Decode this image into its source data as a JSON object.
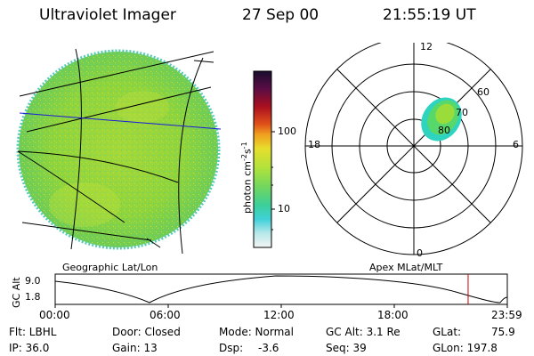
{
  "header": {
    "instrument": "Ultraviolet Imager",
    "date": "27 Sep 00",
    "time": "21:55:19 UT"
  },
  "colorbar": {
    "unit_label": "photon cm",
    "unit_sup1": "-2",
    "unit_s": "s",
    "unit_sup2": "-1",
    "ticks": [
      {
        "label": "100",
        "value": 100
      },
      {
        "label": "10",
        "value": 10
      }
    ],
    "colors": [
      "#1a0d2e",
      "#3b0a45",
      "#6e0f3a",
      "#a80f1f",
      "#d63a16",
      "#f0801f",
      "#f0b024",
      "#e6de2c",
      "#b8e63a",
      "#7ed95a",
      "#3ccf8a",
      "#3fd0d6",
      "#9fe6e6",
      "#dcebed",
      "#f2f2f2"
    ]
  },
  "left_panel": {
    "label": "Geographic Lat/Lon"
  },
  "polar_plot": {
    "label": "Apex MLat/MLT",
    "mlt_labels": {
      "top": "12",
      "bottom": "0",
      "left": "18",
      "right": "6"
    },
    "lat_labels": [
      "60",
      "70",
      "80"
    ]
  },
  "altitude_plot": {
    "ylabel": "GC Alt",
    "yticks": [
      "9.0",
      "1.8"
    ],
    "xticks": [
      "00:00",
      "06:00",
      "12:00",
      "18:00",
      "23:59"
    ],
    "current_time_hours": 21.92
  },
  "info": {
    "flt": "Flt: LBHL",
    "ip": "IP: 36.0",
    "door": "Door: Closed",
    "gain": "Gain: 13",
    "mode": "Mode: Normal",
    "dsp_label": "Dsp:",
    "dsp_value": "-3.6",
    "gcalt": "GC Alt: 3.1 Re",
    "seq": "Seq: 39",
    "glat": "GLat:",
    "glat_value": "75.9",
    "glon": "GLon: 197.8"
  }
}
